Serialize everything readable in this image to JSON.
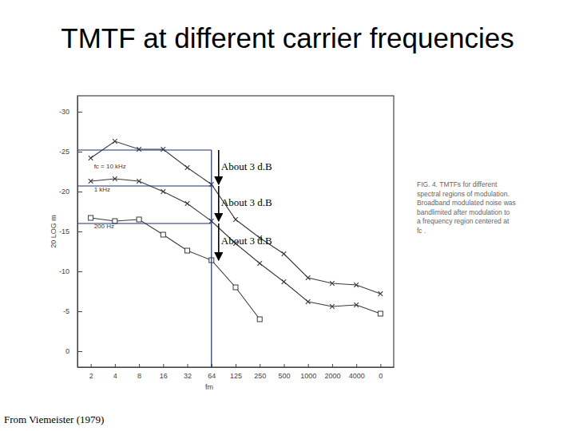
{
  "chart_data": {
    "type": "line",
    "title": "TMTF at different carrier frequencies",
    "x_label": "fm",
    "y_label": "20 LOG m",
    "categories": [
      "2",
      "4",
      "8",
      "16",
      "32",
      "64",
      "125",
      "250",
      "500",
      "1000",
      "2000",
      "4000",
      "0"
    ],
    "ylim": [
      2,
      -32
    ],
    "yticks": [
      -30,
      -25,
      -20,
      -15,
      -10,
      -5,
      0
    ],
    "series": [
      {
        "name": "fc = 10 kHz",
        "color": "#3a3a3a",
        "marker": "x",
        "values": [
          -24.2,
          -26.3,
          -25.3,
          -25.3,
          -23.0,
          -20.9,
          -16.5,
          -14.2,
          -12.2,
          -9.2,
          -8.5,
          -8.3,
          -7.2
        ]
      },
      {
        "name": "1 kHz",
        "color": "#3a3a3a",
        "marker": "x",
        "values": [
          -21.3,
          -21.6,
          -21.3,
          -20.0,
          -18.5,
          -16.3,
          -13.5,
          -11.0,
          -8.7,
          -6.2,
          -5.6,
          -5.8,
          -4.7
        ]
      },
      {
        "name": "200 Hz",
        "color": "#3a3a3a",
        "marker": "square",
        "values": [
          -16.7,
          -16.3,
          -16.5,
          -14.6,
          -12.6,
          -11.4,
          -8.0,
          -4.0,
          null,
          null,
          null,
          null,
          -4.7
        ]
      }
    ],
    "annotations": [
      {
        "text": "About 3 d.B",
        "x": "64",
        "y_from": -25.2,
        "y_to": -20.9
      },
      {
        "text": "About 3 d.B",
        "x": "64",
        "y_from": -20.7,
        "y_to": -16.3
      },
      {
        "text": "About 3 d.B",
        "x": "64",
        "y_from": -16.0,
        "y_to": -11.4
      }
    ],
    "caption": [
      "FIG. 4.  TMTFs for different",
      "spectral regions of modulation.",
      "Broadband modulated noise was",
      "bandlimited after modulation to",
      "a frequency region centered at",
      "fc ."
    ],
    "source": "From Viemeister (1979)"
  }
}
